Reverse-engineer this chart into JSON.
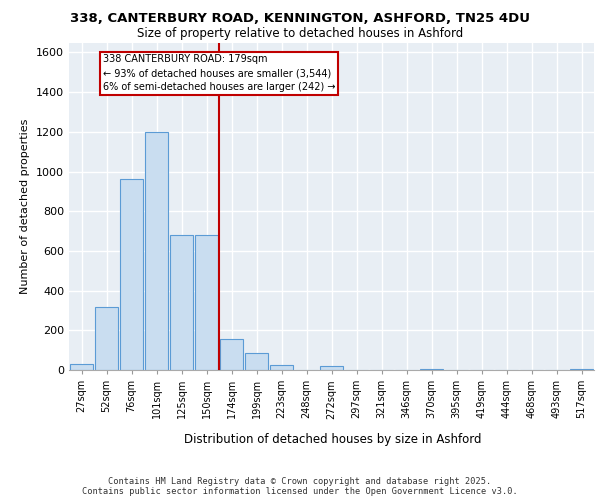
{
  "title_line1": "338, CANTERBURY ROAD, KENNINGTON, ASHFORD, TN25 4DU",
  "title_line2": "Size of property relative to detached houses in Ashford",
  "xlabel": "Distribution of detached houses by size in Ashford",
  "ylabel": "Number of detached properties",
  "categories": [
    "27sqm",
    "52sqm",
    "76sqm",
    "101sqm",
    "125sqm",
    "150sqm",
    "174sqm",
    "199sqm",
    "223sqm",
    "248sqm",
    "272sqm",
    "297sqm",
    "321sqm",
    "346sqm",
    "370sqm",
    "395sqm",
    "419sqm",
    "444sqm",
    "468sqm",
    "493sqm",
    "517sqm"
  ],
  "values": [
    30,
    315,
    960,
    1200,
    680,
    680,
    155,
    85,
    25,
    0,
    20,
    0,
    0,
    0,
    5,
    0,
    0,
    0,
    0,
    0,
    5
  ],
  "bar_color": "#c9ddf0",
  "bar_edge_color": "#5b9bd5",
  "bg_color": "#e8eef4",
  "grid_color": "#ffffff",
  "vline_x_index": 6,
  "vline_color": "#c00000",
  "annotation_text": "338 CANTERBURY ROAD: 179sqm\n← 93% of detached houses are smaller (3,544)\n6% of semi-detached houses are larger (242) →",
  "annotation_box_color": "#c00000",
  "footer_line1": "Contains HM Land Registry data © Crown copyright and database right 2025.",
  "footer_line2": "Contains public sector information licensed under the Open Government Licence v3.0.",
  "ylim": [
    0,
    1650
  ],
  "yticks": [
    0,
    200,
    400,
    600,
    800,
    1000,
    1200,
    1400,
    1600
  ]
}
